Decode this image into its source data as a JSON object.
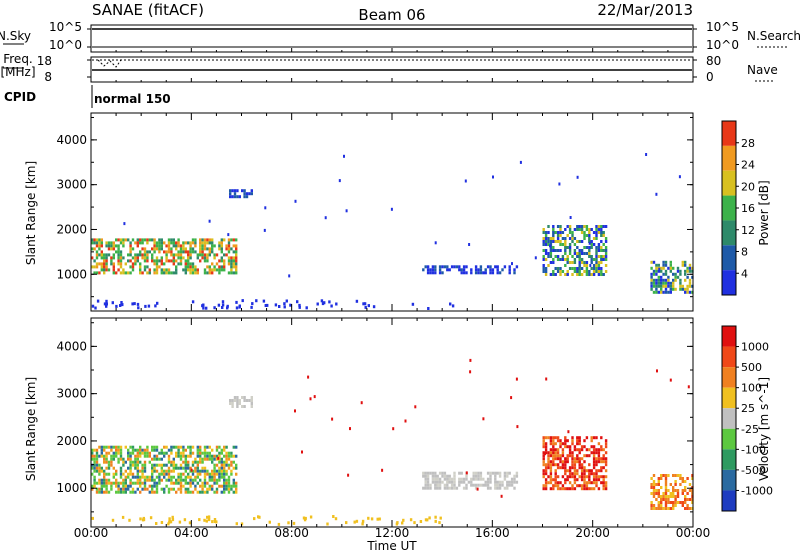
{
  "header": {
    "station": "SANAE (fitACF)",
    "beam": "Beam 06",
    "date": "22/Mar/2013"
  },
  "strip_labels": {
    "nsky": "N.Sky",
    "nsky_ticks": [
      "10^5",
      "10^0"
    ],
    "nsearch": "N.Search",
    "nsearch_ticks": [
      "10^5",
      "10^0"
    ],
    "freq_line1": "Freq.",
    "freq_line2": "[MHz]",
    "freq_ticks": [
      "18",
      "8"
    ],
    "nave": "Nave",
    "nave_ticks": [
      "80",
      "0"
    ],
    "cpid": "CPID",
    "cpid_value": "normal 150"
  },
  "chart_data": [
    {
      "type": "heatmap",
      "panel": "power",
      "ylabel": "Slant Range [km]",
      "yticks": [
        "4000",
        "3000",
        "2000",
        "1000"
      ],
      "ylim": [
        180,
        4600
      ],
      "colorbar_label": "Power [dB]",
      "colorbar_ticks": [
        "28",
        "24",
        "20",
        "16",
        "12",
        "8",
        "4"
      ],
      "colorbar_colors": [
        "#2030e0",
        "#1e5aa8",
        "#2e8a6a",
        "#3cb24a",
        "#d8c020",
        "#f09a20",
        "#e83818"
      ],
      "regions": [
        {
          "t0": 0.0,
          "t1": 5.8,
          "r0": 1000,
          "r1": 1800,
          "level": "high"
        },
        {
          "t0": 5.5,
          "t1": 6.4,
          "r0": 2750,
          "r1": 2900,
          "level": "low"
        },
        {
          "t0": 13.2,
          "t1": 17.0,
          "r0": 1000,
          "r1": 1200,
          "level": "low"
        },
        {
          "t0": 18.0,
          "t1": 20.5,
          "r0": 1000,
          "r1": 2100,
          "level": "mid"
        },
        {
          "t0": 22.3,
          "t1": 24.0,
          "r0": 600,
          "r1": 1300,
          "level": "mid"
        }
      ]
    },
    {
      "type": "heatmap",
      "panel": "velocity",
      "ylabel": "Slant Range [km]",
      "yticks": [
        "4000",
        "3000",
        "2000",
        "1000"
      ],
      "ylim": [
        180,
        4600
      ],
      "colorbar_label": "Velocity [m s^-1]",
      "colorbar_ticks": [
        "1000",
        "500",
        "100",
        "25",
        "-25",
        "-100",
        "-500",
        "-1000"
      ],
      "colorbar_colors": [
        "#1e3cc0",
        "#2a6aa0",
        "#2e9a60",
        "#5cc840",
        "#c0c0c0",
        "#f0c020",
        "#f08020",
        "#f04818",
        "#e01010"
      ],
      "regions": [
        {
          "t0": 0.0,
          "t1": 5.8,
          "r0": 900,
          "r1": 1900,
          "dominant": "mixed"
        },
        {
          "t0": 5.5,
          "t1": 6.4,
          "r0": 2750,
          "r1": 2950,
          "dominant": "grey"
        },
        {
          "t0": 13.2,
          "t1": 17.0,
          "r0": 1000,
          "r1": 1350,
          "dominant": "grey"
        },
        {
          "t0": 18.0,
          "t1": 20.5,
          "r0": 1000,
          "r1": 2100,
          "dominant": "red-orange"
        },
        {
          "t0": 22.3,
          "t1": 24.0,
          "r0": 600,
          "r1": 1300,
          "dominant": "orange"
        }
      ]
    }
  ],
  "xaxis": {
    "label": "Time UT",
    "ticks": [
      "00:00",
      "04:00",
      "08:00",
      "12:00",
      "16:00",
      "20:00",
      "00:00"
    ],
    "xlim": [
      0,
      24
    ]
  }
}
